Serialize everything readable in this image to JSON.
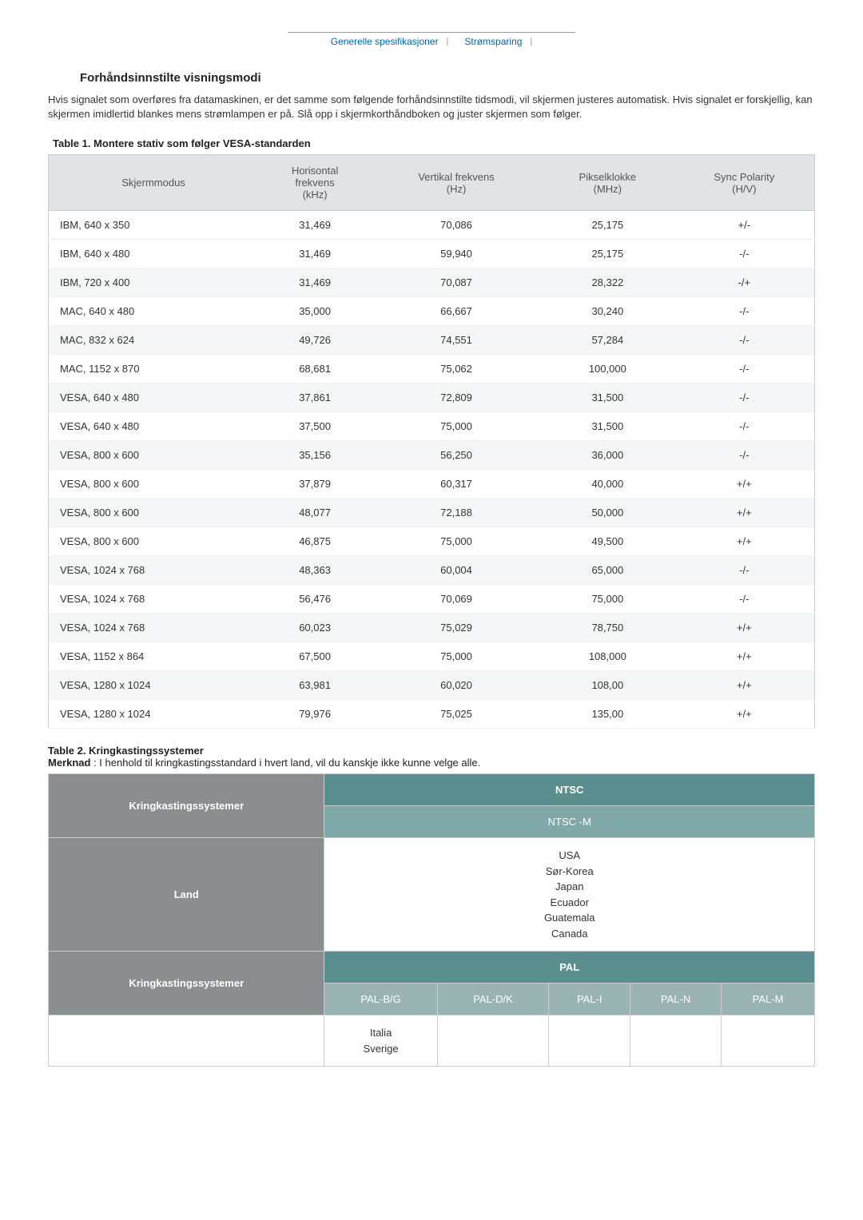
{
  "tabs": {
    "spec": "Generelle spesifikasjoner",
    "power": "Strømsparing"
  },
  "section_title": "Forhåndsinnstilte visningsmodi",
  "intro": "Hvis signalet som overføres fra datamaskinen, er det samme som følgende forhåndsinnstilte tidsmodi, vil skjermen justeres automatisk. Hvis signalet er forskjellig, kan skjermen imidlertid blankes mens strømlampen er på. Slå opp i skjermkorthåndboken og juster skjermen som følger.",
  "table1": {
    "caption": "Table 1. Montere stativ som følger VESA-standarden",
    "headers": [
      "Skjermmodus",
      "Horisontal frekvens (kHz)",
      "Vertikal frekvens (Hz)",
      "Pikselklokke (MHz)",
      "Sync Polarity (H/V)"
    ],
    "rows": [
      [
        "IBM, 640 x 350",
        "31,469",
        "70,086",
        "25,175",
        "+/-"
      ],
      [
        "IBM, 640 x 480",
        "31,469",
        "59,940",
        "25,175",
        "-/-"
      ],
      [
        "IBM, 720 x 400",
        "31,469",
        "70,087",
        "28,322",
        "-/+"
      ],
      [
        "MAC, 640 x 480",
        "35,000",
        "66,667",
        "30,240",
        "-/-"
      ],
      [
        "MAC, 832 x 624",
        "49,726",
        "74,551",
        "57,284",
        "-/-"
      ],
      [
        "MAC, 1152 x 870",
        "68,681",
        "75,062",
        "100,000",
        "-/-"
      ],
      [
        "VESA, 640 x 480",
        "37,861",
        "72,809",
        "31,500",
        "-/-"
      ],
      [
        "VESA, 640 x 480",
        "37,500",
        "75,000",
        "31,500",
        "-/-"
      ],
      [
        "VESA, 800 x 600",
        "35,156",
        "56,250",
        "36,000",
        "-/-"
      ],
      [
        "VESA, 800 x 600",
        "37,879",
        "60,317",
        "40,000",
        "+/+"
      ],
      [
        "VESA, 800 x 600",
        "48,077",
        "72,188",
        "50,000",
        "+/+"
      ],
      [
        "VESA, 800 x 600",
        "46,875",
        "75,000",
        "49,500",
        "+/+"
      ],
      [
        "VESA, 1024 x 768",
        "48,363",
        "60,004",
        "65,000",
        "-/-"
      ],
      [
        "VESA, 1024 x 768",
        "56,476",
        "70,069",
        "75,000",
        "-/-"
      ],
      [
        "VESA, 1024 x 768",
        "60,023",
        "75,029",
        "78,750",
        "+/+"
      ],
      [
        "VESA, 1152 x 864",
        "67,500",
        "75,000",
        "108,000",
        "+/+"
      ],
      [
        "VESA, 1280 x 1024",
        "63,981",
        "60,020",
        "108,00",
        "+/+"
      ],
      [
        "VESA, 1280 x 1024",
        "79,976",
        "75,025",
        "135,00",
        "+/+"
      ]
    ]
  },
  "table2": {
    "caption": "Table 2. Kringkastingssystemer",
    "note_bold": "Merknad",
    "note_rest": " : I henhold til kringkastingsstandard i hvert land, vil du kanskje ikke kunne velge alle.",
    "rowhead_sys": "Kringkastingssystemer",
    "rowhead_land": "Land",
    "ntsc_top": "NTSC",
    "ntsc_sub": "NTSC -M",
    "ntsc_lands": [
      "USA",
      "Sør-Korea",
      "Japan",
      "Ecuador",
      "Guatemala",
      "Canada"
    ],
    "pal_top": "PAL",
    "pal_subs": [
      "PAL-B/G",
      "PAL-D/K",
      "PAL-I",
      "PAL-N",
      "PAL-M"
    ],
    "pal_bg_lands": [
      "Italia",
      "Sverige"
    ]
  }
}
